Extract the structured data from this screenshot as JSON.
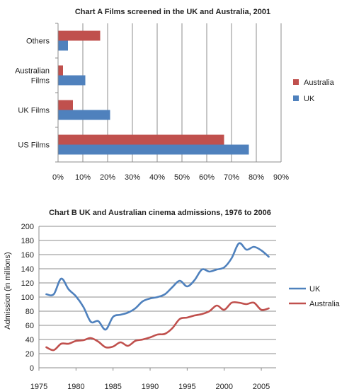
{
  "chart_data": [
    {
      "type": "bar",
      "orientation": "horizontal",
      "title": "Chart A   Films screened in the UK and Australia, 2001",
      "categories": [
        "Others",
        "Australian Films",
        "UK Films",
        "US Films"
      ],
      "category_lines": [
        [
          "Others"
        ],
        [
          "Australian",
          "Films"
        ],
        [
          "UK Films"
        ],
        [
          "US Films"
        ]
      ],
      "series": [
        {
          "name": "Australia",
          "values": [
            17,
            2,
            6,
            67
          ],
          "color": "#c0504d"
        },
        {
          "name": "UK",
          "values": [
            4,
            11,
            21,
            77
          ],
          "color": "#4f81bd"
        }
      ],
      "xlim": [
        0,
        90
      ],
      "xticks": [
        0,
        10,
        20,
        30,
        40,
        50,
        60,
        70,
        80,
        90
      ],
      "xtick_labels": [
        "0%",
        "10%",
        "20%",
        "30%",
        "40%",
        "50%",
        "60%",
        "70%",
        "80%",
        "90%"
      ],
      "grid": "vertical",
      "legend": "right"
    },
    {
      "type": "line",
      "title": "Chart B   UK and Australian cinema admissions, 1976 to 2006",
      "ylabel": "Admission (in millions)",
      "xlim": [
        1975,
        2007
      ],
      "ylim": [
        0,
        200
      ],
      "xticks": [
        1975,
        1980,
        1985,
        1990,
        1995,
        2000,
        2005
      ],
      "yticks": [
        0,
        20,
        40,
        60,
        80,
        100,
        120,
        140,
        160,
        180,
        200
      ],
      "series": [
        {
          "name": "UK",
          "color": "#4f81bd",
          "x": [
            1976,
            1977,
            1978,
            1979,
            1980,
            1981,
            1982,
            1983,
            1984,
            1985,
            1986,
            1987,
            1988,
            1989,
            1990,
            1991,
            1992,
            1993,
            1994,
            1995,
            1996,
            1997,
            1998,
            1999,
            2000,
            2001,
            2002,
            2003,
            2004,
            2005,
            2006
          ],
          "y": [
            104,
            104,
            126,
            111,
            101,
            86,
            65,
            66,
            54,
            72,
            75,
            78,
            84,
            94,
            98,
            100,
            104,
            114,
            123,
            115,
            124,
            139,
            136,
            139,
            142,
            155,
            176,
            167,
            171,
            166,
            157
          ]
        },
        {
          "name": "Australia",
          "color": "#c0504d",
          "x": [
            1976,
            1977,
            1978,
            1979,
            1980,
            1981,
            1982,
            1983,
            1984,
            1985,
            1986,
            1987,
            1988,
            1989,
            1990,
            1991,
            1992,
            1993,
            1994,
            1995,
            1996,
            1997,
            1998,
            1999,
            2000,
            2001,
            2002,
            2003,
            2004,
            2005,
            2006
          ],
          "y": [
            29,
            25,
            34,
            34,
            38,
            39,
            42,
            37,
            29,
            30,
            36,
            31,
            38,
            40,
            43,
            47,
            48,
            56,
            69,
            71,
            74,
            76,
            80,
            88,
            82,
            92,
            92,
            90,
            92,
            82,
            84
          ]
        }
      ],
      "grid": "horizontal",
      "legend": "right"
    }
  ]
}
